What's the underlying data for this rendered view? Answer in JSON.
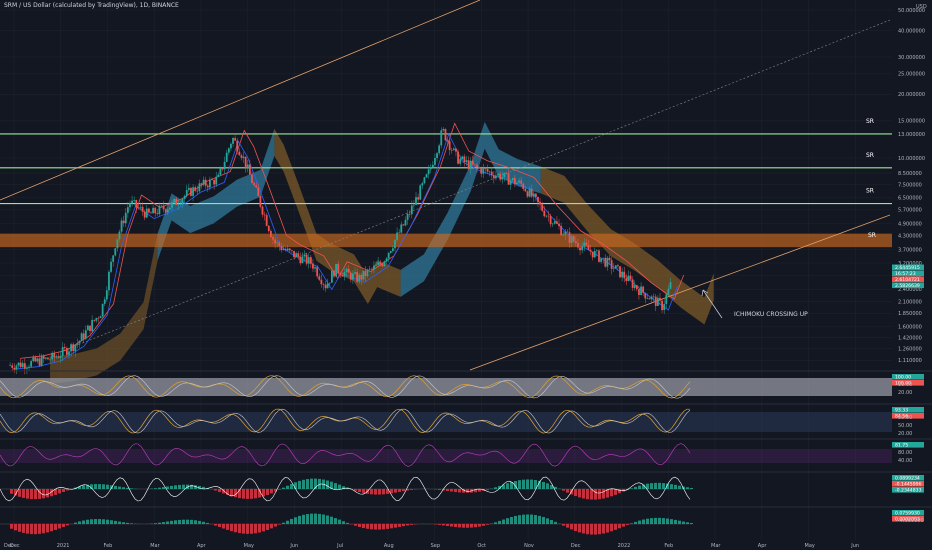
{
  "header": {
    "title": "SRM / US Dollar (calculated by TradingView), 1D, BINANCE"
  },
  "chart_data": {
    "type": "line",
    "title": "SRM / US Dollar (calculated by TradingView), 1D, BINANCE",
    "scale": "log",
    "currency": "USD",
    "ylim": [
      1.0,
      50.0
    ],
    "y_ticks": [
      "50.000000",
      "40.000000",
      "30.000000",
      "25.000000",
      "20.000000",
      "15.000000",
      "13.000000",
      "10.000000",
      "8.500000",
      "7.500000",
      "6.500000",
      "5.700000",
      "4.900000",
      "4.300000",
      "3.700000",
      "3.200000",
      "2.800000",
      "2.400000",
      "2.100000",
      "1.850000",
      "1.600000",
      "1.420000",
      "1.260000",
      "1.110000"
    ],
    "x_ticks": [
      "Dec",
      "2021",
      "Feb",
      "Mar",
      "Apr",
      "May",
      "Jun",
      "Jul",
      "Aug",
      "Sep",
      "Oct",
      "Nov",
      "Dec",
      "2022",
      "Feb",
      "Mar",
      "Apr",
      "May",
      "Jun"
    ],
    "grid": true,
    "sr_levels": [
      {
        "value": 13.0,
        "label": "SR"
      },
      {
        "value": 9.0,
        "label": "SR"
      },
      {
        "value": 6.1,
        "label": "SR"
      },
      {
        "value": 4.3,
        "label": "SR"
      }
    ],
    "sr_zone": [
      3.8,
      4.4
    ],
    "annotation": "ICHIMOKU CROSSING UP",
    "last_labels": [
      "2.6445915",
      "16:57:23",
      "2.6104721",
      "2.5826639"
    ],
    "close_series": {
      "x": [
        0.0,
        0.5,
        1.0,
        1.5,
        2.0,
        2.3,
        2.6,
        3.0,
        3.5,
        4.0,
        4.5,
        4.8,
        5.0,
        5.3,
        5.7,
        6.0,
        6.5,
        6.8,
        7.0,
        7.5,
        8.0,
        8.5,
        9.0,
        9.3,
        9.6,
        10.0,
        10.5,
        11.0,
        11.5,
        12.0,
        12.5,
        13.0,
        13.5,
        14.0,
        14.2
      ],
      "y": [
        1.05,
        1.08,
        1.15,
        1.35,
        1.9,
        4.0,
        6.2,
        5.4,
        6.0,
        7.2,
        8.0,
        12.5,
        10.5,
        7.0,
        4.0,
        3.6,
        3.2,
        2.5,
        3.0,
        2.7,
        3.2,
        5.0,
        8.5,
        13.5,
        10.0,
        9.0,
        8.3,
        7.5,
        5.5,
        4.2,
        3.6,
        3.0,
        2.4,
        2.0,
        2.6
      ]
    },
    "indicators": [
      {
        "name": "Stoch RSI",
        "values": [
          "100.00",
          "100.00"
        ],
        "levels": [
          "80.00",
          "20.00"
        ]
      },
      {
        "name": "RSI",
        "values": [
          "93.33",
          "84.56"
        ],
        "levels": [
          "80.00",
          "50.00",
          "20.00"
        ]
      },
      {
        "name": "Oscillator",
        "values": [
          "81.75"
        ],
        "levels": [
          "80.00",
          "40.00"
        ]
      },
      {
        "name": "MACD",
        "values": [
          "0.0899234",
          "-0.1445996",
          "-0.2344833"
        ]
      },
      {
        "name": "Histogram",
        "values": [
          "0.0759930",
          "0.0002003"
        ],
        "levels": [
          "-4.000000"
        ]
      }
    ]
  },
  "colors": {
    "background": "#131722",
    "sr_line": "#9be59b",
    "zone": "#cd6a1e",
    "cloud_bull": "#3a9bc4",
    "cloud_bear": "#a0702a",
    "trend": "#e6a26a",
    "candle_up": "#26a69a",
    "candle_down": "#ef5350"
  }
}
